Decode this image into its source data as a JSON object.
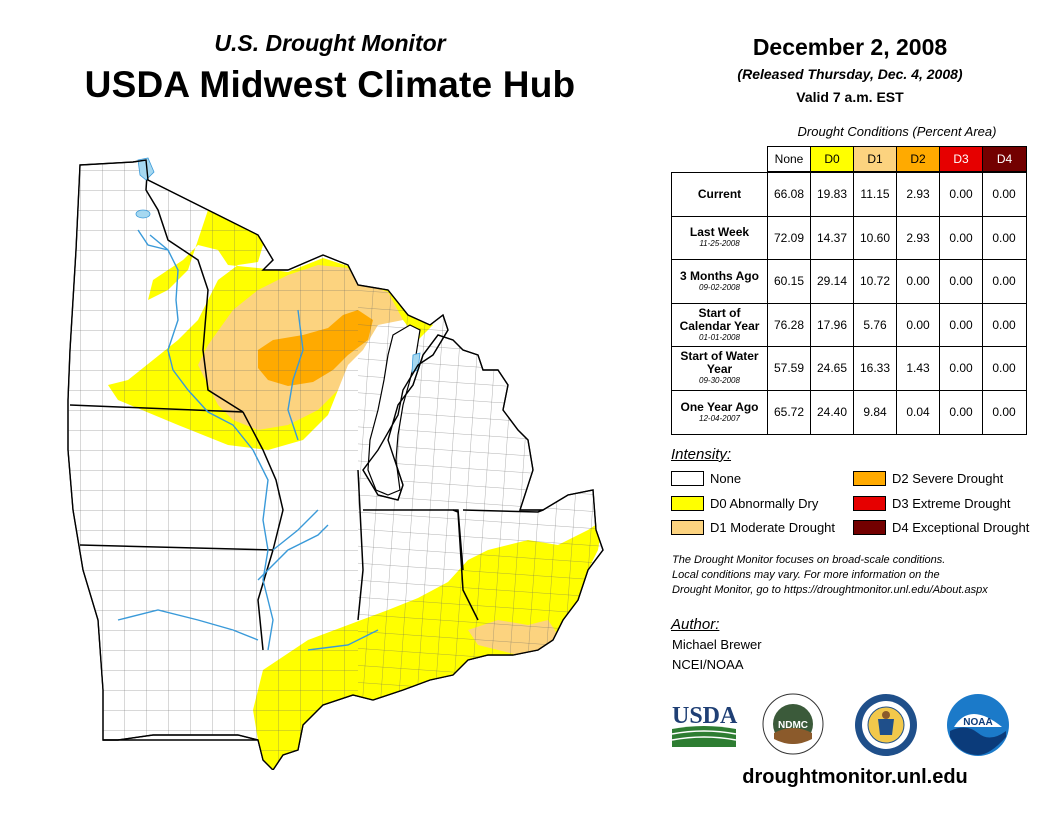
{
  "header": {
    "subtitle": "U.S. Drought Monitor",
    "title": "USDA Midwest Climate Hub"
  },
  "date_block": {
    "date": "December 2, 2008",
    "released": "(Released Thursday, Dec. 4, 2008)",
    "valid": "Valid 7 a.m. EST"
  },
  "conditions": {
    "title": "Drought Conditions (Percent Area)",
    "columns": [
      {
        "label": "None",
        "color": "#ffffff"
      },
      {
        "label": "D0",
        "color": "#ffff00"
      },
      {
        "label": "D1",
        "color": "#fcd37f"
      },
      {
        "label": "D2",
        "color": "#ffaa00"
      },
      {
        "label": "D3",
        "color": "#e60000"
      },
      {
        "label": "D4",
        "color": "#730000"
      }
    ],
    "rows": [
      {
        "label": "Current",
        "date": "",
        "values": [
          "66.08",
          "19.83",
          "11.15",
          "2.93",
          "0.00",
          "0.00"
        ]
      },
      {
        "label": "Last Week",
        "date": "11-25-2008",
        "values": [
          "72.09",
          "14.37",
          "10.60",
          "2.93",
          "0.00",
          "0.00"
        ]
      },
      {
        "label": "3 Months Ago",
        "date": "09-02-2008",
        "values": [
          "60.15",
          "29.14",
          "10.72",
          "0.00",
          "0.00",
          "0.00"
        ]
      },
      {
        "label": "Start of Calendar Year",
        "date": "01-01-2008",
        "values": [
          "76.28",
          "17.96",
          "5.76",
          "0.00",
          "0.00",
          "0.00"
        ]
      },
      {
        "label": "Start of Water Year",
        "date": "09-30-2008",
        "values": [
          "57.59",
          "24.65",
          "16.33",
          "1.43",
          "0.00",
          "0.00"
        ]
      },
      {
        "label": "One Year Ago",
        "date": "12-04-2007",
        "values": [
          "65.72",
          "24.40",
          "9.84",
          "0.04",
          "0.00",
          "0.00"
        ]
      }
    ]
  },
  "legend": {
    "title": "Intensity:",
    "items": [
      {
        "label": "None",
        "color": "#ffffff"
      },
      {
        "label": "D0 Abnormally Dry",
        "color": "#ffff00"
      },
      {
        "label": "D1 Moderate Drought",
        "color": "#fcd37f"
      },
      {
        "label": "D2 Severe Drought",
        "color": "#ffaa00"
      },
      {
        "label": "D3 Extreme Drought",
        "color": "#e60000"
      },
      {
        "label": "D4 Exceptional Drought",
        "color": "#730000"
      }
    ]
  },
  "note": [
    "The Drought Monitor focuses on broad-scale conditions.",
    "Local conditions may vary. For more information on the",
    "Drought Monitor, go to https://droughtmonitor.unl.edu/About.aspx"
  ],
  "author": {
    "heading": "Author:",
    "name": "Michael Brewer",
    "org": "NCEI/NOAA"
  },
  "logos": {
    "usda": "USDA",
    "ndmc": "NDMC",
    "noaa": "NOAA"
  },
  "website": "droughtmonitor.unl.edu",
  "map_colors": {
    "water": "#a6d8f0",
    "river": "#3a9ad9",
    "county_line": "#555555",
    "state_line": "#000000"
  }
}
